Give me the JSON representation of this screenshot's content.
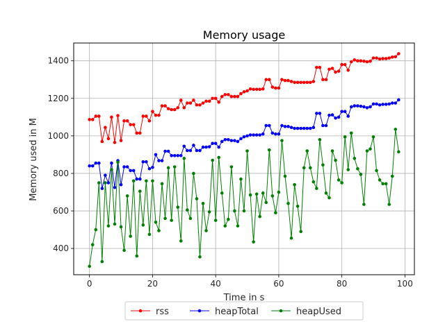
{
  "chart_data": {
    "type": "line",
    "title": "Memory usage",
    "xlabel": "Time in s",
    "ylabel": "Memory used in M",
    "xlim": [
      -5,
      103
    ],
    "ylim": [
      260,
      1495
    ],
    "xticks": [
      0,
      20,
      40,
      60,
      80,
      100
    ],
    "yticks": [
      400,
      600,
      800,
      1000,
      1200,
      1400
    ],
    "grid": true,
    "legend_position": "bottom-center",
    "x": [
      0,
      1,
      2,
      3,
      4,
      5,
      6,
      7,
      8,
      9,
      10,
      11,
      12,
      13,
      14,
      15,
      16,
      17,
      18,
      19,
      20,
      21,
      22,
      23,
      24,
      25,
      26,
      27,
      28,
      29,
      30,
      31,
      32,
      33,
      34,
      35,
      36,
      37,
      38,
      39,
      40,
      41,
      42,
      43,
      44,
      45,
      46,
      47,
      48,
      49,
      50,
      51,
      52,
      53,
      54,
      55,
      56,
      57,
      58,
      59,
      60,
      61,
      62,
      63,
      64,
      65,
      66,
      67,
      68,
      69,
      70,
      71,
      72,
      73,
      74,
      75,
      76,
      77,
      78,
      79,
      80,
      81,
      82,
      83,
      84,
      85,
      86,
      87,
      88,
      89,
      90,
      91,
      92,
      93,
      94,
      95,
      96,
      97,
      98
    ],
    "series": [
      {
        "name": "rss",
        "color": "#ff0000",
        "values": [
          1087,
          1087,
          1105,
          1105,
          970,
          1045,
          985,
          1100,
          965,
          1108,
          975,
          1080,
          1080,
          1060,
          1060,
          1015,
          1015,
          1105,
          1105,
          1080,
          1130,
          1110,
          1110,
          1160,
          1160,
          1145,
          1140,
          1140,
          1150,
          1190,
          1150,
          1175,
          1175,
          1190,
          1165,
          1165,
          1175,
          1185,
          1185,
          1200,
          1200,
          1180,
          1210,
          1220,
          1220,
          1210,
          1210,
          1210,
          1225,
          1235,
          1240,
          1250,
          1248,
          1248,
          1248,
          1250,
          1300,
          1300,
          1260,
          1255,
          1255,
          1300,
          1295,
          1295,
          1290,
          1285,
          1285,
          1285,
          1285,
          1285,
          1285,
          1290,
          1365,
          1365,
          1300,
          1300,
          1355,
          1360,
          1340,
          1345,
          1380,
          1380,
          1350,
          1395,
          1405,
          1400,
          1400,
          1398,
          1395,
          1398,
          1415,
          1415,
          1410,
          1412,
          1412,
          1415,
          1420,
          1422,
          1438
        ]
      },
      {
        "name": "heapTotal",
        "color": "#0000ff",
        "values": [
          840,
          840,
          855,
          855,
          720,
          790,
          750,
          855,
          725,
          868,
          740,
          835,
          835,
          815,
          815,
          770,
          770,
          862,
          862,
          825,
          832,
          900,
          868,
          868,
          918,
          918,
          895,
          895,
          895,
          895,
          945,
          922,
          922,
          950,
          922,
          922,
          940,
          940,
          942,
          960,
          960,
          940,
          970,
          980,
          980,
          975,
          975,
          970,
          985,
          995,
          1000,
          1005,
          1005,
          1005,
          1005,
          1010,
          1055,
          1055,
          1015,
          1010,
          1010,
          1055,
          1050,
          1050,
          1045,
          1040,
          1040,
          1040,
          1040,
          1040,
          1040,
          1045,
          1120,
          1120,
          1055,
          1055,
          1110,
          1112,
          1095,
          1100,
          1130,
          1130,
          1105,
          1155,
          1160,
          1160,
          1158,
          1155,
          1150,
          1155,
          1170,
          1170,
          1165,
          1168,
          1168,
          1170,
          1175,
          1175,
          1192
        ]
      },
      {
        "name": "heapUsed",
        "color": "#008000",
        "values": [
          305,
          420,
          500,
          750,
          330,
          750,
          520,
          820,
          530,
          860,
          515,
          390,
          680,
          465,
          760,
          360,
          705,
          525,
          760,
          475,
          760,
          540,
          495,
          745,
          560,
          830,
          550,
          835,
          620,
          440,
          880,
          605,
          560,
          800,
          665,
          355,
          640,
          495,
          595,
          870,
          550,
          885,
          695,
          520,
          555,
          835,
          600,
          520,
          770,
          600,
          920,
          685,
          435,
          690,
          570,
          695,
          645,
          925,
          680,
          590,
          700,
          975,
          785,
          640,
          455,
          740,
          625,
          490,
          830,
          920,
          830,
          755,
          720,
          980,
          845,
          695,
          670,
          920,
          870,
          765,
          750,
          995,
          820,
          1015,
          880,
          825,
          795,
          635,
          920,
          930,
          995,
          815,
          765,
          745,
          745,
          635,
          785,
          1035,
          915
        ]
      }
    ]
  }
}
